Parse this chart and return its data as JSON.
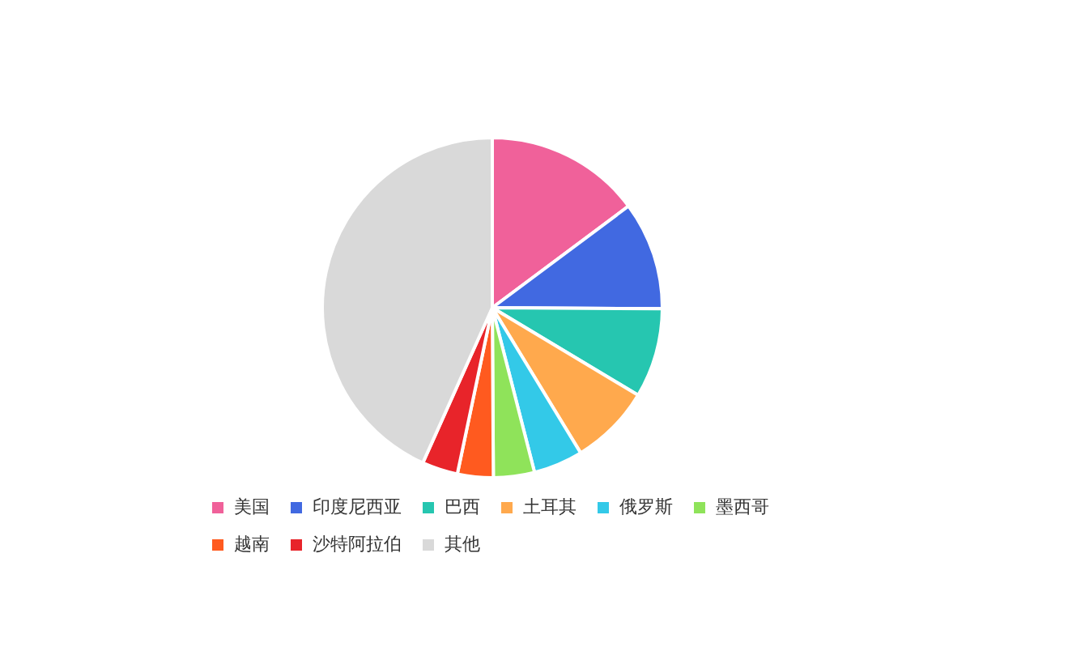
{
  "chart_data": {
    "type": "pie",
    "categories": [
      "美国",
      "印度尼西亚",
      "巴西",
      "土耳其",
      "俄罗斯",
      "墨西哥",
      "越南",
      "沙特阿拉伯",
      "其他"
    ],
    "values": [
      14.8,
      10.3,
      8.5,
      7.7,
      4.7,
      3.9,
      3.4,
      3.4,
      43.3
    ],
    "colors": [
      "#f0619a",
      "#4169e1",
      "#26c6b0",
      "#ffa94d",
      "#33c9e8",
      "#8fe35a",
      "#ff5a1f",
      "#e8242a",
      "#d9d9d9"
    ],
    "legend": "bottom"
  }
}
